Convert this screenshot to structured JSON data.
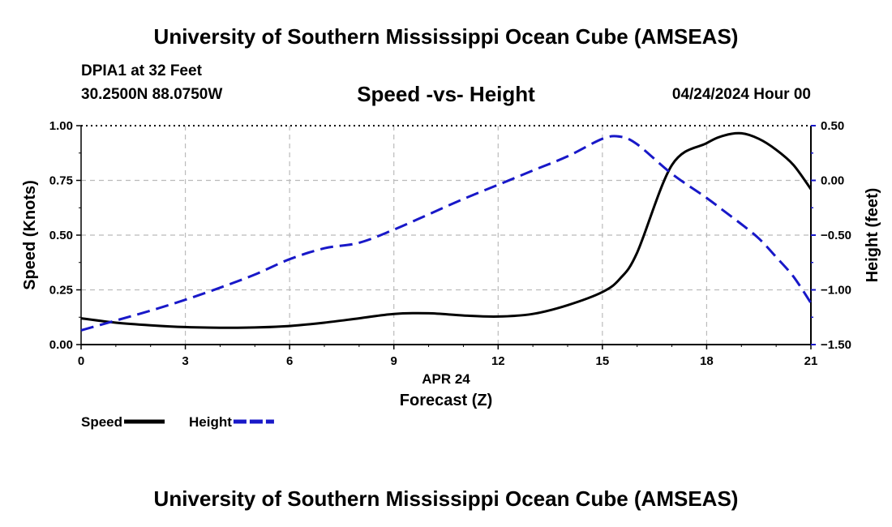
{
  "header": {
    "title": "University of Southern Mississippi Ocean Cube (AMSEAS)",
    "station": "DPIA1 at 32 Feet",
    "coords": "30.2500N  88.0750W",
    "subtitle": "Speed -vs- Height",
    "datetime": "04/24/2024 Hour 00"
  },
  "footer": {
    "title": "University of Southern Mississippi Ocean Cube (AMSEAS)"
  },
  "chart_data": {
    "type": "line",
    "title": "Speed -vs- Height",
    "xlabel_date": "APR 24",
    "xlabel": "Forecast (Z)",
    "ylabel": "Speed (Knots)",
    "y2label": "Height (feet)",
    "xlim": [
      0,
      21
    ],
    "ylim": [
      0,
      1
    ],
    "y2lim": [
      -1.5,
      0.5
    ],
    "x_ticks": [
      0,
      3,
      6,
      9,
      12,
      15,
      18,
      21
    ],
    "x_tick_labels": [
      "0",
      "3",
      "6",
      "9",
      "12",
      "15",
      "18",
      "21"
    ],
    "y_ticks": [
      0,
      0.25,
      0.5,
      0.75,
      1.0
    ],
    "y_tick_labels": [
      "0.00",
      "0.25",
      "0.50",
      "0.75",
      "1.00"
    ],
    "y2_ticks": [
      -1.5,
      -1.0,
      -0.5,
      0.0,
      0.5
    ],
    "y2_tick_labels": [
      "−1.50",
      "−1.00",
      "−0.50",
      "0.00",
      "0.50"
    ],
    "grid": true,
    "x": [
      0,
      1,
      2,
      3,
      4,
      5,
      6,
      7,
      8,
      9,
      10,
      11,
      12,
      13,
      14,
      15,
      15.5,
      16,
      17,
      18,
      18.5,
      19,
      19.5,
      20,
      20.5,
      21
    ],
    "series": [
      {
        "name": "Speed",
        "axis": "left",
        "color": "#000000",
        "dash": "solid",
        "values": [
          0.12,
          0.1,
          0.088,
          0.08,
          0.077,
          0.078,
          0.085,
          0.1,
          0.12,
          0.14,
          0.143,
          0.133,
          0.128,
          0.14,
          0.18,
          0.24,
          0.3,
          0.42,
          0.82,
          0.92,
          0.955,
          0.965,
          0.94,
          0.89,
          0.82,
          0.71
        ]
      },
      {
        "name": "Height",
        "axis": "right",
        "color": "#1818c8",
        "dash": "dashed",
        "values": [
          -1.37,
          -1.28,
          -1.19,
          -1.09,
          -0.98,
          -0.86,
          -0.72,
          -0.62,
          -0.57,
          -0.45,
          -0.31,
          -0.17,
          -0.04,
          0.09,
          0.22,
          0.38,
          0.4,
          0.33,
          0.06,
          -0.16,
          -0.28,
          -0.4,
          -0.53,
          -0.7,
          -0.88,
          -1.12
        ]
      }
    ],
    "legend": [
      {
        "label": "Speed",
        "color": "#000000",
        "dash": "solid"
      },
      {
        "label": "Height",
        "color": "#1818c8",
        "dash": "dashed"
      }
    ],
    "legend_position": "bottom-left"
  }
}
